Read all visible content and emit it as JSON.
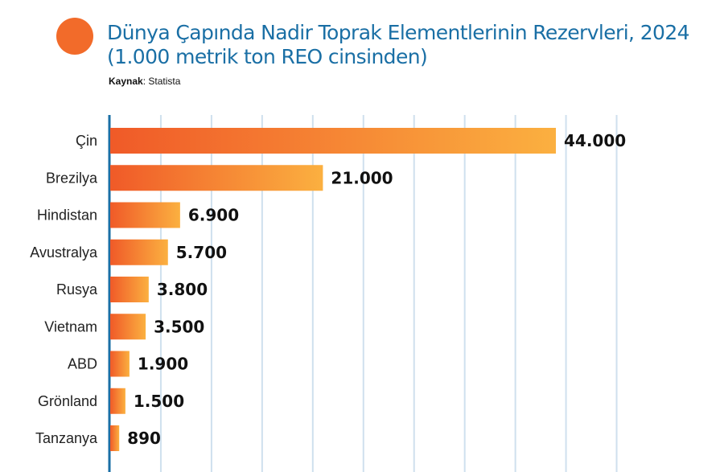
{
  "header": {
    "title_line1": "Dünya Çapında Nadir Toprak Elementlerinin Rezervleri, 2024",
    "title_line2": "(1.000 metrik ton REO cinsinden)",
    "source_label": "Kaynak",
    "source_sep": ": ",
    "source_value": "Statista"
  },
  "colors": {
    "title": "#1a6fa5",
    "dot": "#f26b2a",
    "bar_start": "#f05a28",
    "bar_end": "#fbb040",
    "grid": "#cfe0ee",
    "axis": "#1a6fa5"
  },
  "chart_data": {
    "type": "bar",
    "orientation": "horizontal",
    "categories": [
      "Çin",
      "Brezilya",
      "Hindistan",
      "Avustralya",
      "Rusya",
      "Vietnam",
      "ABD",
      "Grönland",
      "Tanzanya"
    ],
    "values": [
      44000,
      21000,
      6900,
      5700,
      3800,
      3500,
      1900,
      1500,
      890
    ],
    "value_labels": [
      "44.000",
      "21.000",
      "6.900",
      "5.700",
      "3.800",
      "3.500",
      "1.900",
      "1.500",
      "890"
    ],
    "title": "Dünya Çapında Nadir Toprak Elementlerinin Rezervleri, 2024 (1.000 metrik ton REO cinsinden)",
    "xlim": [
      0,
      50000
    ],
    "grid": true
  }
}
